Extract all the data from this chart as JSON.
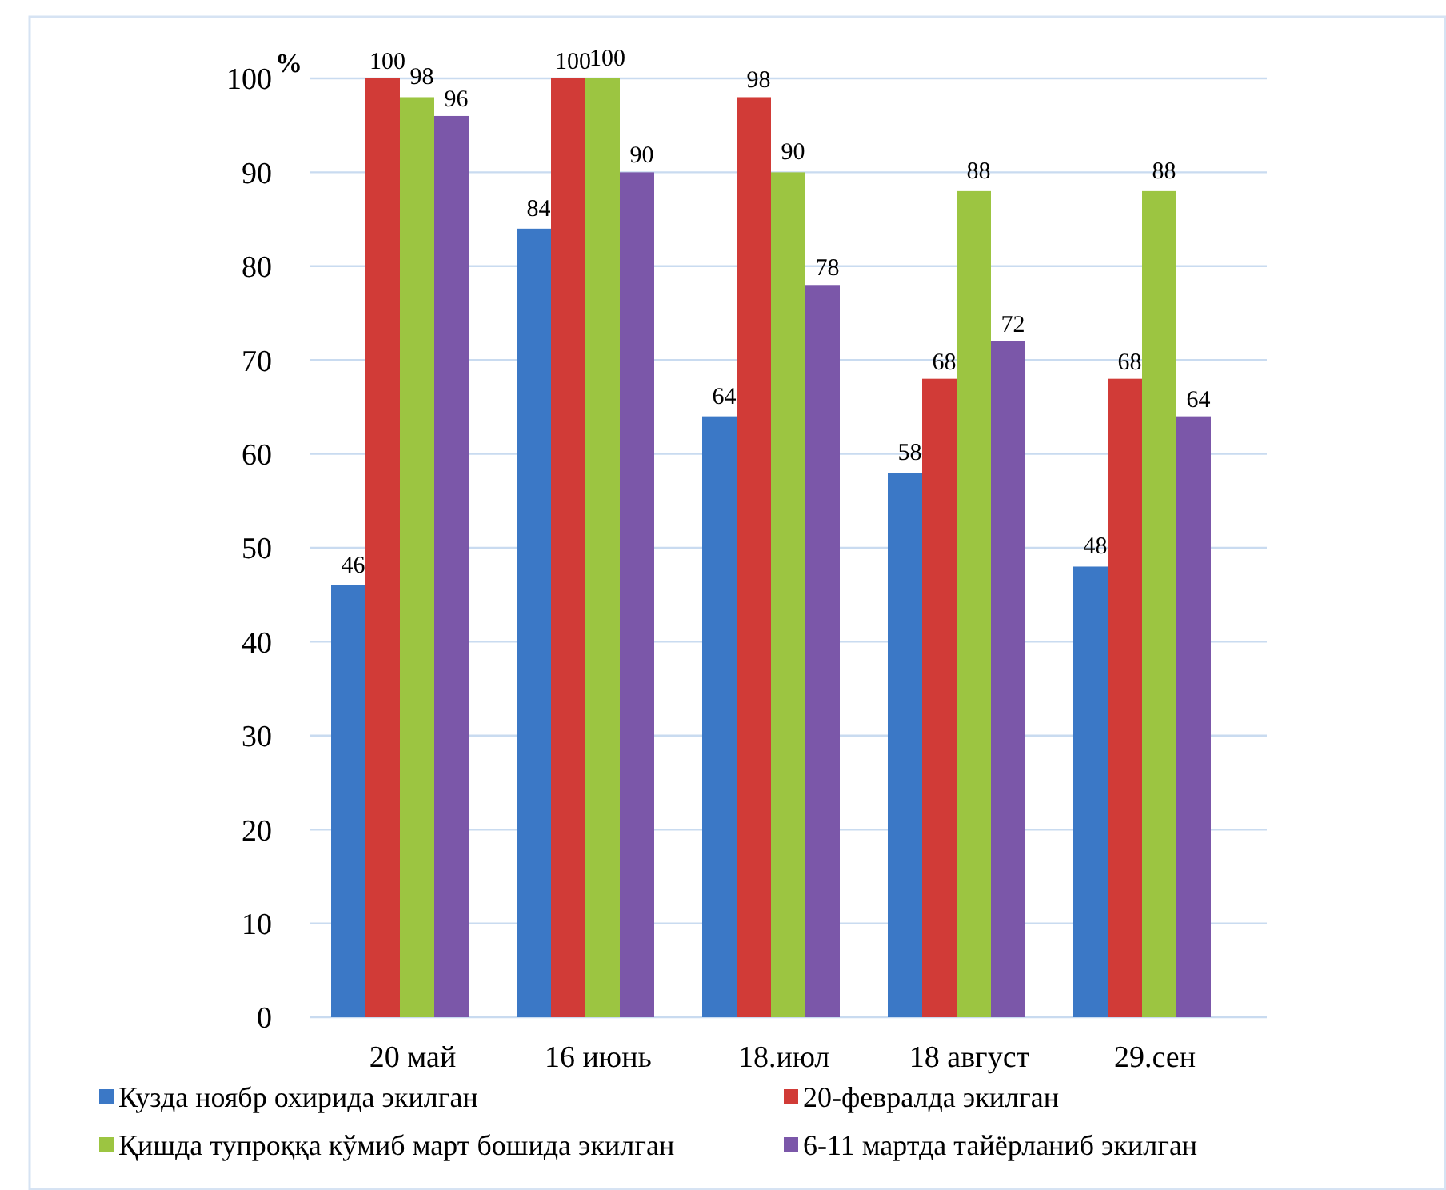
{
  "chart_data": {
    "type": "bar",
    "ylabel": "%",
    "categories": [
      "20 май",
      "16 июнь",
      "18.июл",
      "18 август",
      "29.сен"
    ],
    "series": [
      {
        "name": "Кузда ноябр охирида экилган",
        "color": "#3b78c6",
        "values": [
          46,
          84,
          64,
          58,
          48
        ]
      },
      {
        "name": "20-февралда экилган",
        "color": "#d13b37",
        "values": [
          100,
          100,
          98,
          68,
          68
        ]
      },
      {
        "name": "Қишда тупроққа кўмиб март бошида экилган",
        "color": "#9cc541",
        "values": [
          98,
          100,
          90,
          88,
          88
        ]
      },
      {
        "name": "6-11 мартда тайёрланиб экилган",
        "color": "#7b57a9",
        "values": [
          96,
          90,
          78,
          72,
          64
        ]
      }
    ],
    "ylim": [
      0,
      100
    ],
    "yticks": [
      0,
      10,
      20,
      30,
      40,
      50,
      60,
      70,
      80,
      90,
      100
    ],
    "grid": "y",
    "data_labels": true,
    "legend": "bottom"
  }
}
